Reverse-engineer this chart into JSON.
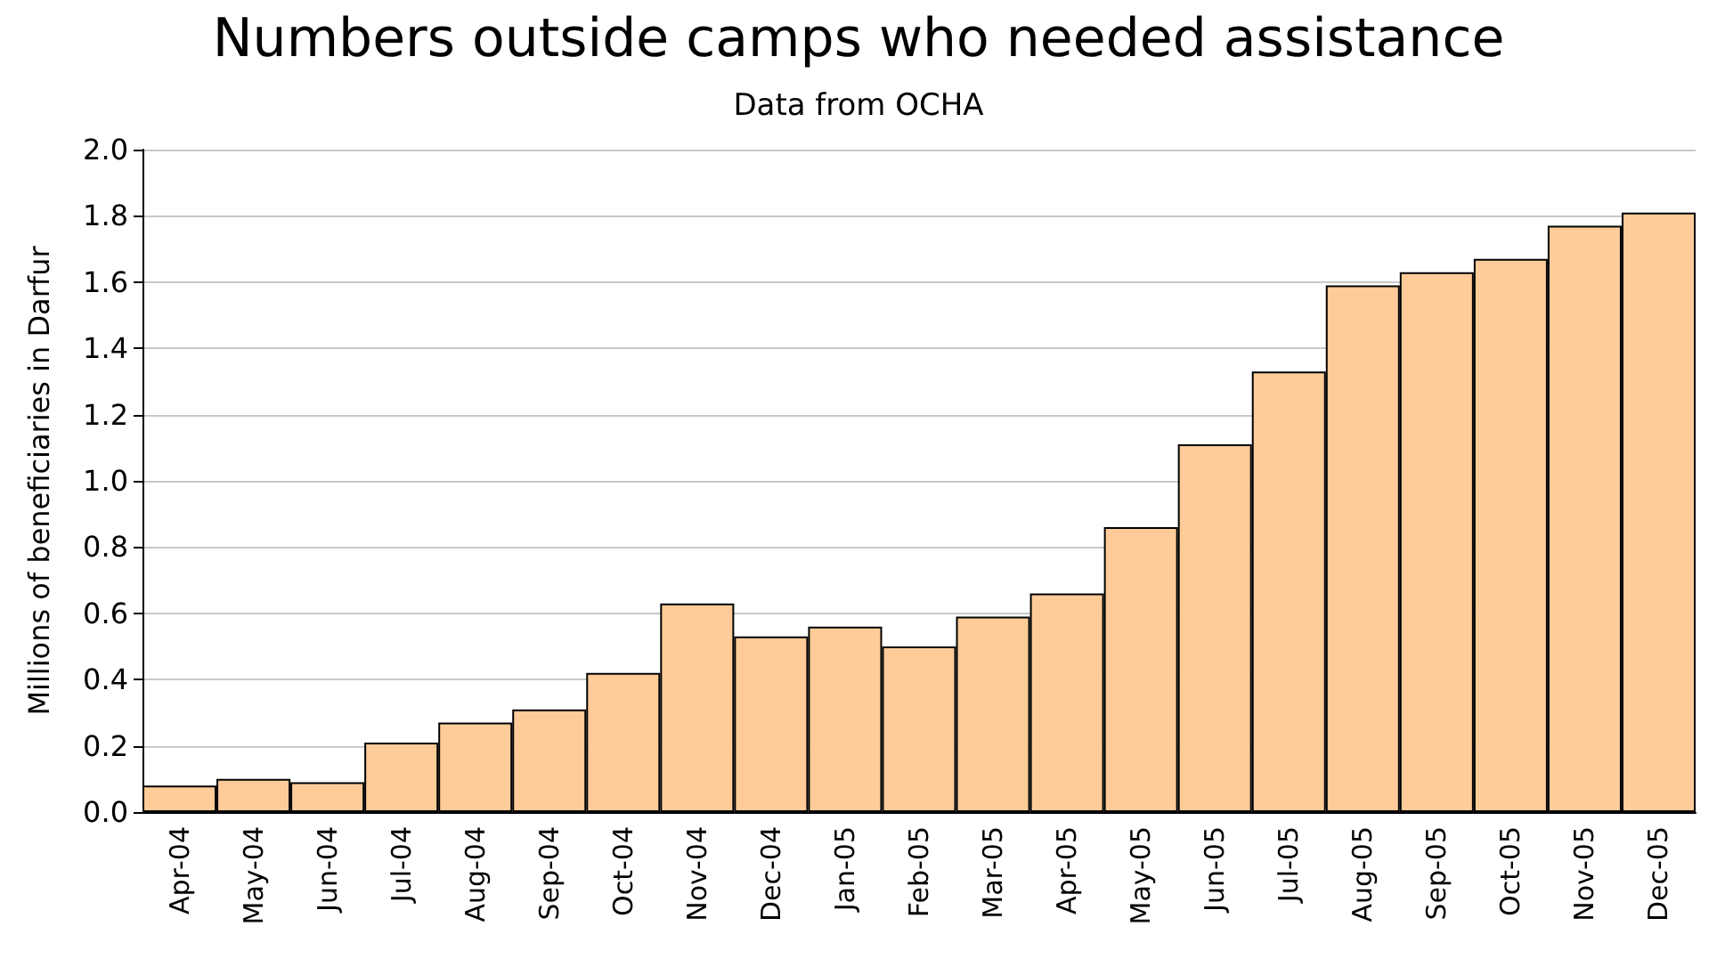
{
  "chart_data": {
    "type": "bar",
    "title": "Numbers outside camps who needed assistance",
    "subtitle": "Data from OCHA",
    "ylabel": "Millions of beneficiaries in Darfur",
    "categories": [
      "Apr-04",
      "May-04",
      "Jun-04",
      "Jul-04",
      "Aug-04",
      "Sep-04",
      "Oct-04",
      "Nov-04",
      "Dec-04",
      "Jan-05",
      "Feb-05",
      "Mar-05",
      "Apr-05",
      "May-05",
      "Jun-05",
      "Jul-05",
      "Aug-05",
      "Sep-05",
      "Oct-05",
      "Nov-05",
      "Dec-05"
    ],
    "values": [
      0.08,
      0.1,
      0.09,
      0.21,
      0.27,
      0.31,
      0.42,
      0.63,
      0.53,
      0.56,
      0.5,
      0.59,
      0.66,
      0.86,
      1.11,
      1.33,
      1.59,
      1.63,
      1.67,
      1.77,
      1.81
    ],
    "color": "#ffcc99",
    "ylim": [
      0,
      2
    ],
    "yticks": [
      {
        "value": 0,
        "label": "0.0"
      },
      {
        "value": 0.2,
        "label": "0.2"
      },
      {
        "value": 0.4,
        "label": "0.4"
      },
      {
        "value": 0.6,
        "label": "0.6"
      },
      {
        "value": 0.8,
        "label": "0.8"
      },
      {
        "value": 1,
        "label": "1.0"
      },
      {
        "value": 1.2,
        "label": "1.2"
      },
      {
        "value": 1.4,
        "label": "1.4"
      },
      {
        "value": 1.6,
        "label": "1.6"
      },
      {
        "value": 1.8,
        "label": "1.8"
      },
      {
        "value": 2,
        "label": "2.0"
      }
    ],
    "grid": "y"
  }
}
